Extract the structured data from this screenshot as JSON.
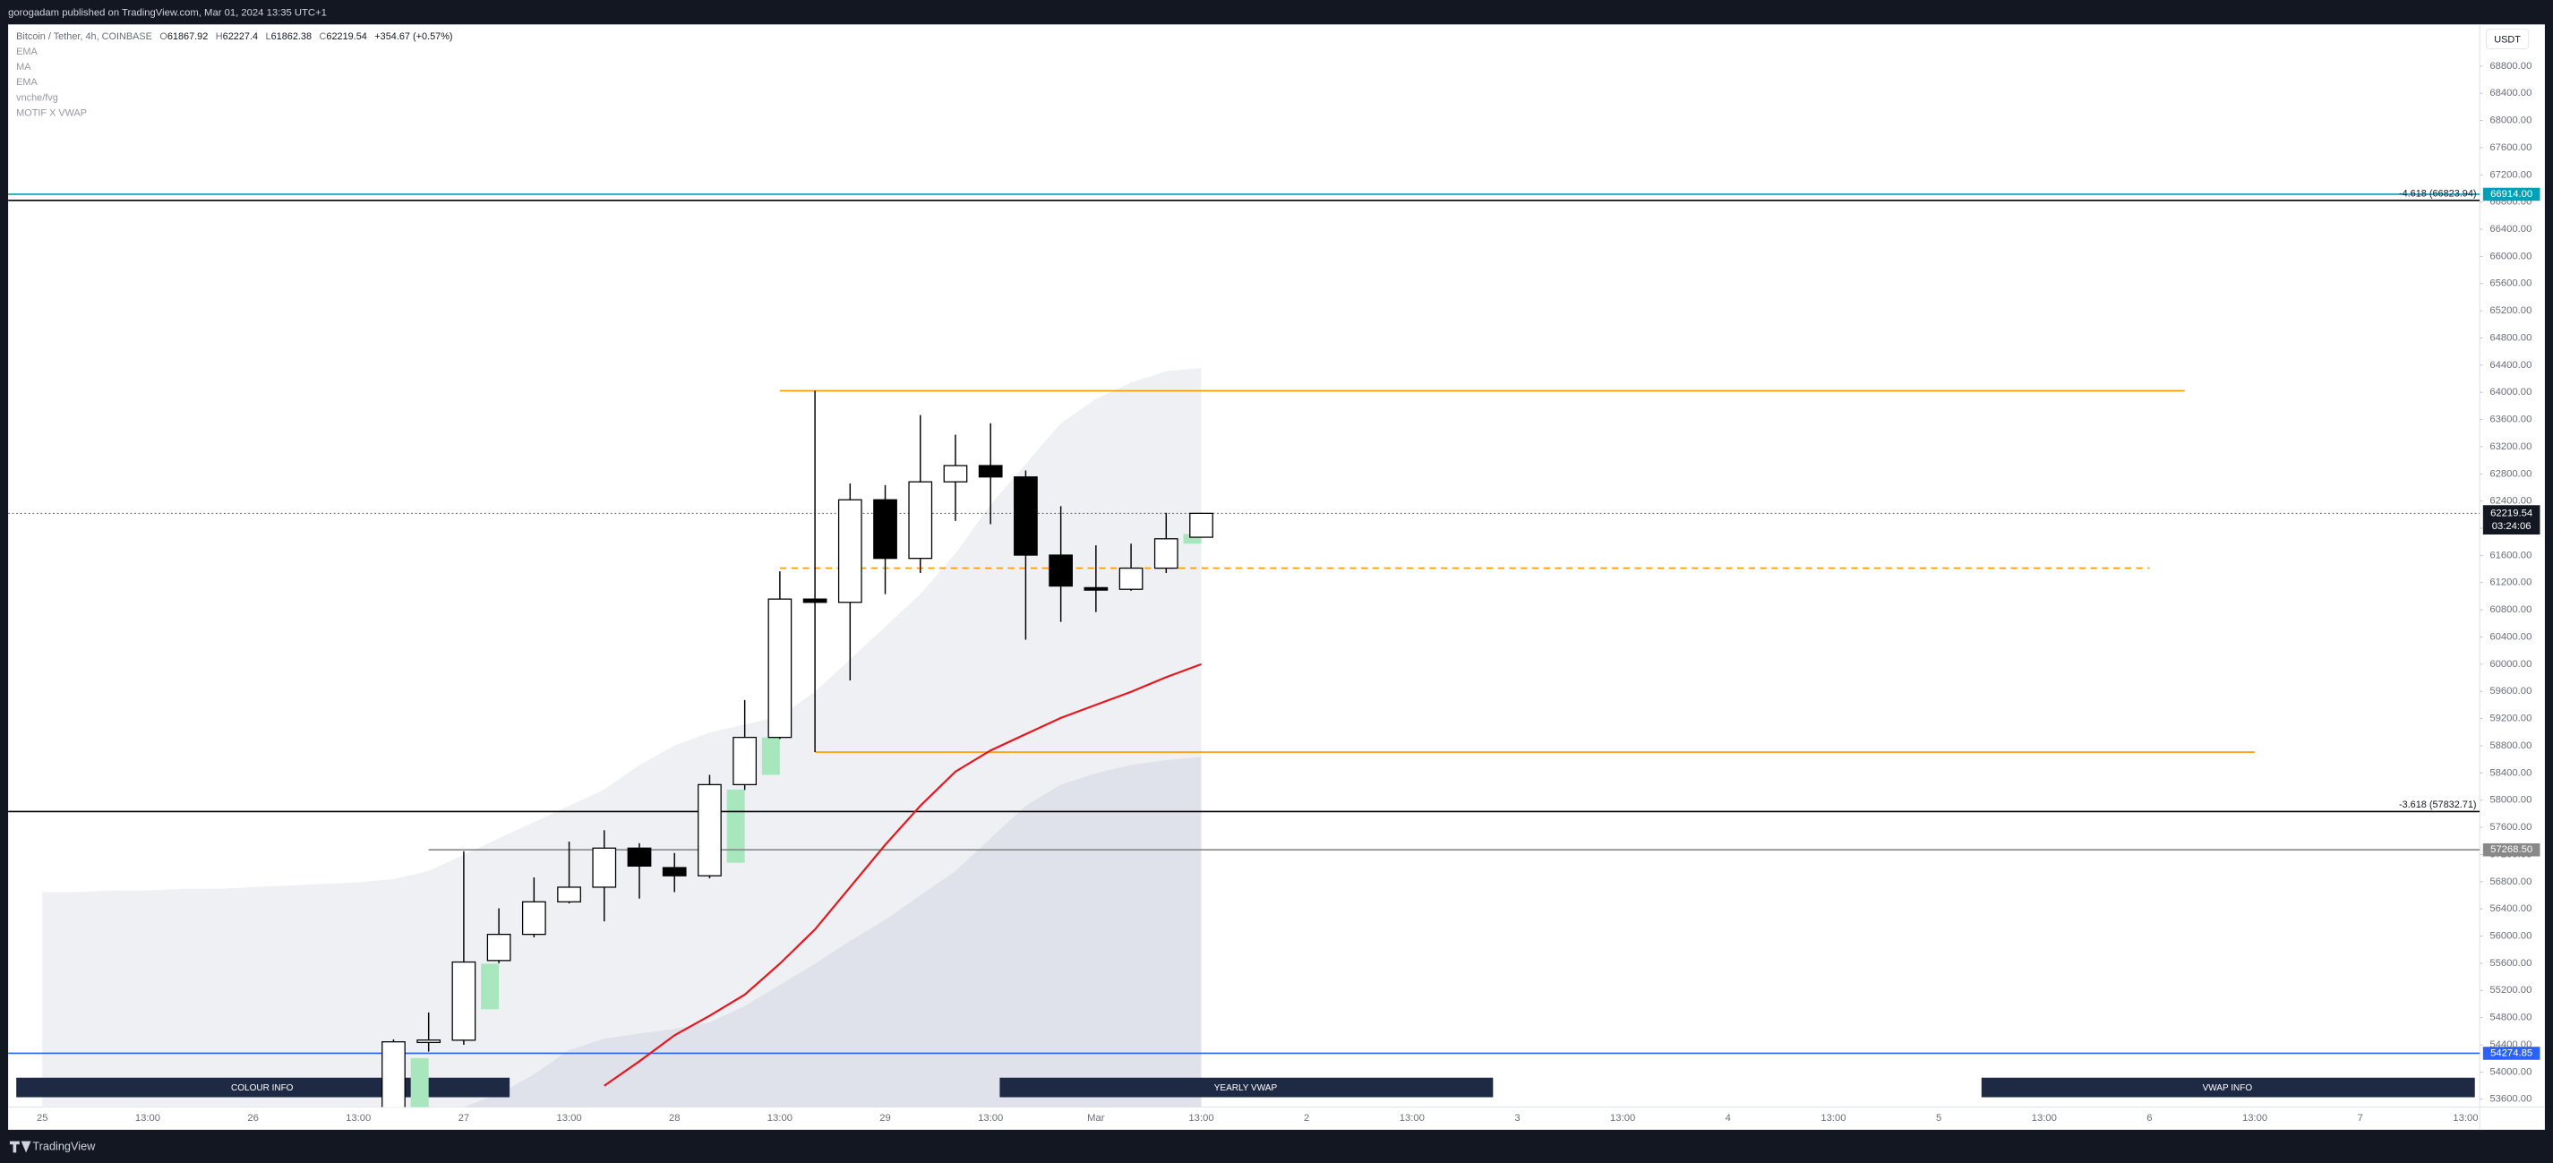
{
  "header": {
    "publisher": "gorogadam published on TradingView.com, Mar 01, 2024 13:35 UTC+1"
  },
  "footer": {
    "brand": "TradingView"
  },
  "currency": "USDT",
  "buttons": [
    "COLOUR INFO",
    "YEARLY VWAP",
    "VWAP INFO"
  ],
  "chart_data": {
    "type": "candlestick",
    "symbol": "Bitcoin / Tether, 4h, COINBASE",
    "ohlc_prefixes": [
      "O",
      "H",
      "L",
      "C"
    ],
    "change": "+354.67 (+0.57%)",
    "indicators": [
      "EMA",
      "MA",
      "EMA",
      "vnche/fvg",
      "MOTIF X VWAP"
    ],
    "countdown": "03:24:06",
    "categories": [
      "25",
      null,
      null,
      "13:00",
      null,
      null,
      "26",
      null,
      null,
      "13:00",
      null,
      null,
      "27",
      null,
      null,
      "13:00",
      null,
      null,
      "28",
      null,
      null,
      "13:00",
      null,
      null,
      "29",
      null,
      null,
      "13:00",
      null,
      null,
      "Mar",
      null,
      null,
      "13:00",
      null,
      null,
      "2",
      null,
      null,
      "13:00",
      null,
      null,
      "3",
      null,
      null,
      "13:00",
      null,
      null,
      "4",
      null,
      null,
      "13:00",
      null,
      null,
      "5",
      null,
      null,
      "13:00",
      null,
      null,
      "6",
      null,
      null,
      "13:00",
      null,
      null,
      "7",
      null,
      null,
      "13:00"
    ],
    "open": [
      null,
      null,
      null,
      null,
      null,
      null,
      null,
      null,
      null,
      null,
      53450,
      54444,
      54468,
      55640,
      56025,
      56504,
      56719,
      57294,
      57007,
      56887,
      58228,
      58923,
      60958,
      60910,
      62419,
      61557,
      62683,
      62922,
      62755,
      61605,
      61126,
      61102,
      61413,
      61867.92,
      null,
      null,
      null,
      null,
      null,
      null,
      null,
      null,
      null,
      null,
      null,
      null,
      null,
      null,
      null,
      null,
      null,
      null,
      null,
      null,
      null,
      null,
      null,
      null,
      null,
      null,
      null,
      null,
      null,
      null,
      null,
      null,
      null,
      null,
      null,
      null
    ],
    "high": [
      null,
      null,
      null,
      null,
      null,
      null,
      null,
      null,
      null,
      null,
      54480,
      54875,
      57246,
      56408,
      56863,
      57390,
      57557,
      57366,
      57222,
      58372,
      59473,
      61366,
      64024,
      62659,
      62635,
      63665,
      63377,
      63545,
      62850,
      62324,
      61749,
      61773,
      62228,
      62227.4,
      null,
      null,
      null,
      null,
      null,
      null,
      null,
      null,
      null,
      null,
      null,
      null,
      null,
      null,
      null,
      null,
      null,
      null,
      null,
      null,
      null,
      null,
      null,
      null,
      null,
      null,
      null,
      null,
      null,
      null,
      null,
      null,
      null,
      null,
      null,
      null
    ],
    "low": [
      null,
      null,
      null,
      null,
      null,
      null,
      null,
      null,
      null,
      null,
      53300,
      54300,
      54400,
      55600,
      55980,
      56480,
      56216,
      56551,
      56647,
      56850,
      58150,
      58900,
      58707,
      59761,
      61030,
      61342,
      62108,
      62060,
      60360,
      60623,
      60767,
      61080,
      61342,
      61862.38,
      null,
      null,
      null,
      null,
      null,
      null,
      null,
      null,
      null,
      null,
      null,
      null,
      null,
      null,
      null,
      null,
      null,
      null,
      null,
      null,
      null,
      null,
      null,
      null,
      null,
      null,
      null,
      null,
      null,
      null,
      null,
      null,
      null,
      null,
      null,
      null
    ],
    "close": [
      null,
      null,
      null,
      null,
      null,
      null,
      null,
      null,
      null,
      null,
      54444,
      54470,
      55618,
      56025,
      56504,
      56719,
      57294,
      57030,
      56887,
      58228,
      58923,
      60958,
      60910,
      62419,
      61557,
      62683,
      62922,
      62755,
      61605,
      61150,
      61102,
      61413,
      61845,
      62219.54,
      null,
      null,
      null,
      null,
      null,
      null,
      null,
      null,
      null,
      null,
      null,
      null,
      null,
      null,
      null,
      null,
      null,
      null,
      null,
      null,
      null,
      null,
      null,
      null,
      null,
      null,
      null,
      null,
      null,
      null,
      null,
      null,
      null,
      null,
      null,
      null
    ],
    "up_color": "#ffffff",
    "down_color": "#000000",
    "ema": {
      "color": "#e8151d",
      "values": [
        null,
        null,
        null,
        null,
        null,
        null,
        null,
        null,
        null,
        null,
        null,
        null,
        null,
        null,
        null,
        null,
        53797,
        54157,
        54540,
        54827,
        55138,
        55594,
        56097,
        56719,
        57342,
        57917,
        58420,
        58731,
        58971,
        59210,
        59402,
        59593,
        59809,
        60000
      ]
    },
    "bands": {
      "upper": {
        "color": "#eef0f4",
        "values": [
          56647,
          56647,
          56671,
          56671,
          56695,
          56695,
          56719,
          56743,
          56767,
          56791,
          56839,
          56959,
          57198,
          57438,
          57677,
          57917,
          58156,
          58516,
          58803,
          58994,
          59114,
          59234,
          59593,
          60072,
          60551,
          61030,
          61629,
          62347,
          62946,
          63545,
          63904,
          64144,
          64311,
          64359
        ]
      },
      "lower": {
        "color": "#dfe2ea",
        "values": [
          null,
          null,
          null,
          null,
          null,
          null,
          null,
          null,
          null,
          null,
          null,
          null,
          53486,
          53678,
          53965,
          54324,
          54492,
          54564,
          54636,
          54731,
          54971,
          55282,
          55594,
          55929,
          56240,
          56600,
          56959,
          57438,
          57917,
          58228,
          58396,
          58516,
          58588,
          58635
        ]
      }
    },
    "fvg_color": "#a8e6bd",
    "fvg_zones": [
      {
        "category": 11,
        "top": 54205,
        "bottom": 53486
      },
      {
        "category": 13,
        "top": 55594,
        "bottom": 54923
      },
      {
        "category": 20,
        "top": 58156,
        "bottom": 57079
      },
      {
        "category": 21,
        "top": 58923,
        "bottom": 58372
      },
      {
        "category": 33,
        "top": 61916,
        "bottom": 61773
      }
    ],
    "levels": [
      {
        "value": 66914,
        "label": "66914.00",
        "color": "#00a0b8"
      },
      {
        "value": 66823.94,
        "text": "-4.618 (66823.94)",
        "color": "#000000"
      },
      {
        "value": 64024,
        "color": "#ff9800",
        "start": 21,
        "end": 61
      },
      {
        "value": 61413,
        "color": "#ff9800",
        "start": 21,
        "end": 60,
        "dashed": true
      },
      {
        "value": 58707,
        "color": "#ff9800",
        "start": 22,
        "end": 63
      },
      {
        "value": 57832.71,
        "text": "-3.618 (57832.71)",
        "color": "#000000"
      },
      {
        "value": 57268.5,
        "label": "57268.50",
        "color": "#888888",
        "start": 11
      },
      {
        "value": 54274.85,
        "label": "54274.85",
        "color": "#2962ff"
      }
    ],
    "ylim": [
      53485,
      69413
    ],
    "yticks": [
      {
        "value": 53600,
        "label": "53600.00"
      },
      {
        "value": 54000,
        "label": "54000.00"
      },
      {
        "value": 54400,
        "label": "54400.00"
      },
      {
        "value": 54800,
        "label": "54800.00"
      },
      {
        "value": 55200,
        "label": "55200.00"
      },
      {
        "value": 55600,
        "label": "55600.00"
      },
      {
        "value": 56000,
        "label": "56000.00"
      },
      {
        "value": 56400,
        "label": "56400.00"
      },
      {
        "value": 56800,
        "label": "56800.00"
      },
      {
        "value": 57200,
        "label": "57200.00"
      },
      {
        "value": 57600,
        "label": "57600.00"
      },
      {
        "value": 58000,
        "label": "58000.00"
      },
      {
        "value": 58400,
        "label": "58400.00"
      },
      {
        "value": 58800,
        "label": "58800.00"
      },
      {
        "value": 59200,
        "label": "59200.00"
      },
      {
        "value": 59600,
        "label": "59600.00"
      },
      {
        "value": 60000,
        "label": "60000.00"
      },
      {
        "value": 60400,
        "label": "60400.00"
      },
      {
        "value": 60800,
        "label": "60800.00"
      },
      {
        "value": 61200,
        "label": "61200.00"
      },
      {
        "value": 61600,
        "label": "61600.00"
      },
      {
        "value": 62000,
        "label": "62000.00"
      },
      {
        "value": 62400,
        "label": "62400.00"
      },
      {
        "value": 62800,
        "label": "62800.00"
      },
      {
        "value": 63200,
        "label": "63200.00"
      },
      {
        "value": 63600,
        "label": "63600.00"
      },
      {
        "value": 64000,
        "label": "64000.00"
      },
      {
        "value": 64400,
        "label": "64400.00"
      },
      {
        "value": 64800,
        "label": "64800.00"
      },
      {
        "value": 65200,
        "label": "65200.00"
      },
      {
        "value": 65600,
        "label": "65600.00"
      },
      {
        "value": 66000,
        "label": "66000.00"
      },
      {
        "value": 66400,
        "label": "66400.00"
      },
      {
        "value": 66800,
        "label": "66800.00"
      },
      {
        "value": 67200,
        "label": "67200.00"
      },
      {
        "value": 67600,
        "label": "67600.00"
      },
      {
        "value": 68000,
        "label": "68000.00"
      },
      {
        "value": 68400,
        "label": "68400.00"
      },
      {
        "value": 68800,
        "label": "68800.00"
      }
    ]
  }
}
